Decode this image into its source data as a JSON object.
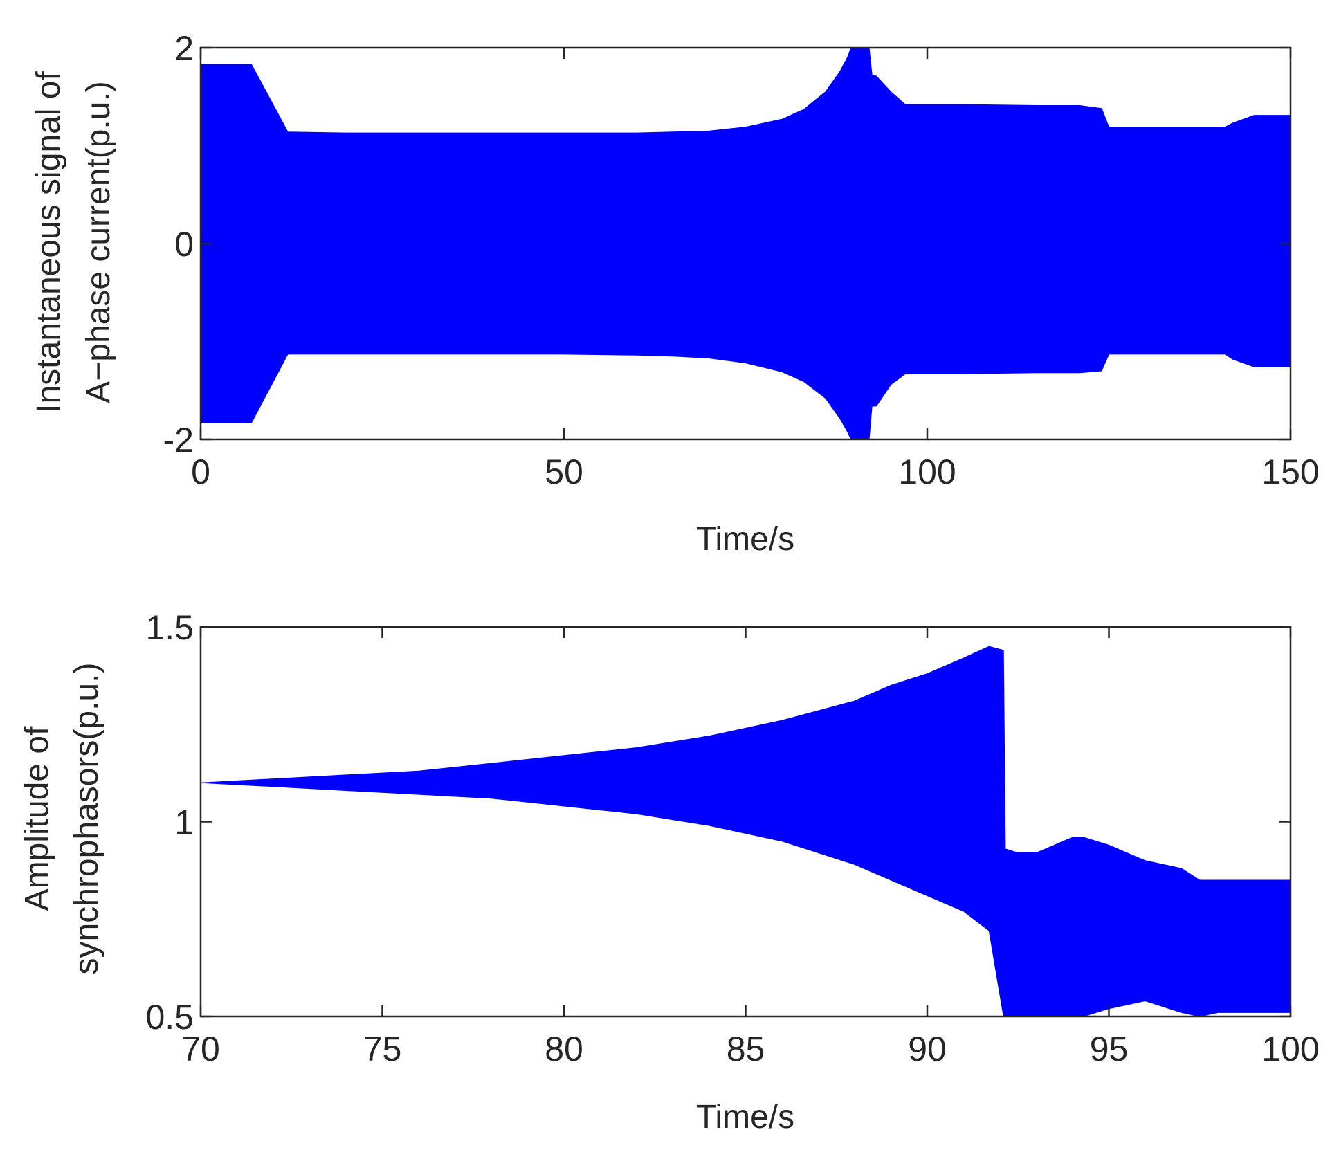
{
  "chart_data": [
    {
      "type": "area",
      "color": "#0000FF",
      "xlabel": "Time/s",
      "ylabel_lines": [
        "Instantaneous signal of",
        "A−phase current(p.u.)"
      ],
      "xlim": [
        0,
        150
      ],
      "ylim": [
        -2,
        2
      ],
      "xticks": [
        0,
        50,
        100,
        150
      ],
      "yticks": [
        -2,
        0,
        2
      ],
      "xtick_labels": [
        "0",
        "50",
        "100",
        "150"
      ],
      "ytick_labels": [
        "-2",
        "0",
        "2"
      ],
      "series": [
        {
          "x": [
            0,
            7,
            12,
            20,
            30,
            40,
            50,
            60,
            65,
            70,
            75,
            80,
            83,
            86,
            88,
            89,
            89.5,
            92,
            92.4,
            93,
            95,
            97,
            100,
            105,
            115,
            121,
            124,
            125,
            130,
            140,
            141,
            142,
            145,
            150
          ],
          "upper": [
            1.83,
            1.83,
            1.14,
            1.13,
            1.13,
            1.13,
            1.13,
            1.13,
            1.14,
            1.15,
            1.19,
            1.27,
            1.37,
            1.55,
            1.76,
            1.9,
            2.0,
            2.0,
            1.72,
            1.71,
            1.55,
            1.42,
            1.42,
            1.42,
            1.41,
            1.41,
            1.38,
            1.19,
            1.19,
            1.19,
            1.19,
            1.23,
            1.31,
            1.31
          ],
          "lower": [
            -1.83,
            -1.83,
            -1.13,
            -1.13,
            -1.13,
            -1.13,
            -1.13,
            -1.14,
            -1.15,
            -1.17,
            -1.22,
            -1.31,
            -1.41,
            -1.58,
            -1.79,
            -1.92,
            -2.0,
            -2.0,
            -1.66,
            -1.66,
            -1.44,
            -1.33,
            -1.33,
            -1.33,
            -1.32,
            -1.32,
            -1.3,
            -1.13,
            -1.13,
            -1.13,
            -1.13,
            -1.18,
            -1.26,
            -1.26
          ]
        }
      ]
    },
    {
      "type": "area",
      "color": "#0000FF",
      "xlabel": "Time/s",
      "ylabel_lines": [
        "Amplitude of",
        "synchrophasors(p.u.)"
      ],
      "xlim": [
        70,
        100
      ],
      "ylim": [
        0.5,
        1.5
      ],
      "xticks": [
        70,
        75,
        80,
        85,
        90,
        95,
        100
      ],
      "yticks": [
        0.5,
        1,
        1.5
      ],
      "xtick_labels": [
        "70",
        "75",
        "80",
        "85",
        "90",
        "95",
        "100"
      ],
      "ytick_labels": [
        "0.5",
        "1",
        "1.5"
      ],
      "series": [
        {
          "x": [
            70,
            72,
            74,
            76,
            78,
            80,
            82,
            84,
            86,
            88,
            89,
            90,
            91,
            91.7,
            92.1,
            92.15,
            92.5,
            93,
            93.5,
            94,
            94.3,
            95,
            96,
            97,
            97.5,
            98,
            100
          ],
          "upper": [
            1.1,
            1.11,
            1.12,
            1.13,
            1.15,
            1.17,
            1.19,
            1.22,
            1.26,
            1.31,
            1.35,
            1.38,
            1.42,
            1.45,
            1.44,
            0.93,
            0.92,
            0.92,
            0.94,
            0.96,
            0.96,
            0.94,
            0.9,
            0.88,
            0.85,
            0.85,
            0.85
          ],
          "lower": [
            1.1,
            1.09,
            1.08,
            1.07,
            1.06,
            1.04,
            1.02,
            0.99,
            0.95,
            0.89,
            0.85,
            0.81,
            0.77,
            0.72,
            0.5,
            0.5,
            0.5,
            0.5,
            0.5,
            0.5,
            0.5,
            0.52,
            0.54,
            0.51,
            0.5,
            0.51,
            0.51
          ]
        }
      ]
    }
  ]
}
